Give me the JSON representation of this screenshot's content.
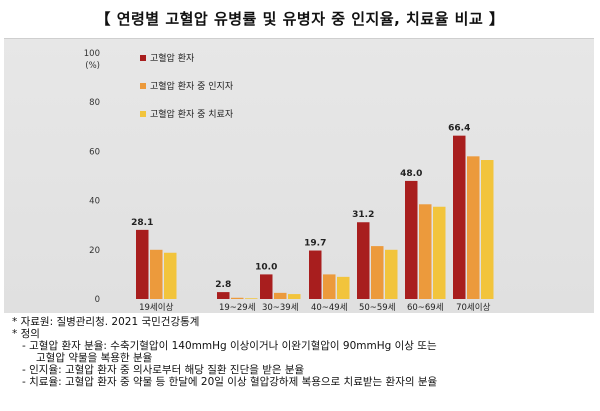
{
  "title": "【 연령별 고혈압 유병률 및 유병자 중 인지율, 치료율 비교 】",
  "colors": {
    "prevalence": "#a81e1e",
    "awareness": "#ec9a3c",
    "treatment": "#f2c43c"
  },
  "chart_data": {
    "type": "bar",
    "ylabel": "100\n(%)",
    "ylabel_top": "100",
    "ylabel_unit": "(%)",
    "ylim": [
      0,
      100
    ],
    "yticks": [
      "0",
      "20",
      "40",
      "60",
      "80"
    ],
    "categories": [
      "19세이상",
      "19~29세",
      "30~39세",
      "40~49세",
      "50~59세",
      "60~69세",
      "70세이상"
    ],
    "series": [
      {
        "name": "고혈압 환자",
        "values": [
          28.1,
          2.8,
          10.0,
          19.7,
          31.2,
          48.0,
          66.4
        ]
      },
      {
        "name": "고혈압 환자 중 인지자",
        "values": [
          20.0,
          0.5,
          2.5,
          10.0,
          21.5,
          38.5,
          58.0
        ]
      },
      {
        "name": "고혈압 환자 중 치료자",
        "values": [
          18.8,
          0.3,
          2.0,
          9.0,
          20.0,
          37.5,
          56.5
        ]
      }
    ],
    "data_labels": [
      "28.1",
      "2.8",
      "10.0",
      "19.7",
      "31.2",
      "48.0",
      "66.4"
    ],
    "legend": "top-left"
  },
  "notes": {
    "source": "* 자료원: 질병관리청. 2021 국민건강통계",
    "def_head": "* 정의",
    "def1a": "- 고혈압 환자 분율: 수축기혈압이 140mmHg 이상이거나 이완기혈압이 90mmHg 이상 또는",
    "def1b": "고혈압 약물을 복용한 분율",
    "def2": "- 인지율: 고혈압 환자 중 의사로부터 해당 질환 진단을 받은 분율",
    "def3": "- 치료율: 고혈압 환자 중 약물 등 한달에 20일 이상 혈압강하제 복용으로 치료받는 환자의 분율"
  }
}
